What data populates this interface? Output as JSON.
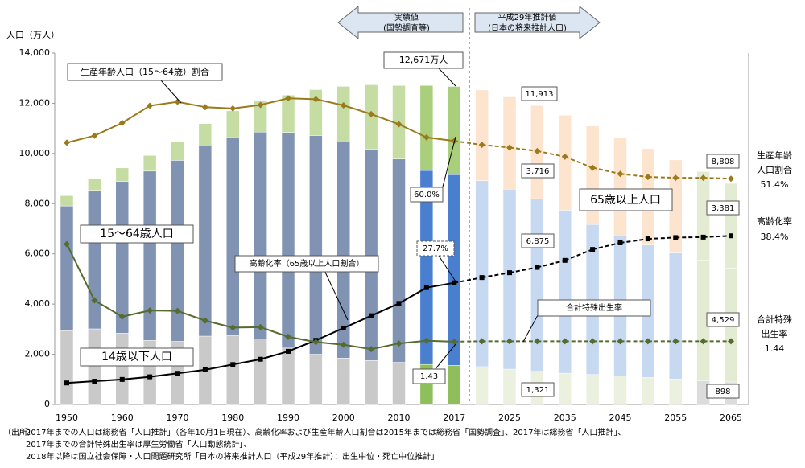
{
  "chart_data": {
    "type": "bar",
    "y_label": "人口（万人）",
    "categories": [
      "1950",
      null,
      "1960",
      null,
      "1970",
      null,
      "1980",
      null,
      "1990",
      null,
      "2000",
      null,
      "2010",
      null,
      "2017",
      null,
      "2025",
      null,
      "2035",
      null,
      "2045",
      null,
      "2055",
      null,
      "2065"
    ],
    "ylim": [
      0,
      14000
    ],
    "yticks": [
      0,
      {
        "value": 2000,
        "label": "2,000"
      },
      {
        "value": 4000,
        "label": "4,000"
      },
      {
        "value": 6000,
        "label": "6,000"
      },
      {
        "value": 8000,
        "label": "8,000"
      },
      {
        "value": 10000,
        "label": "10,000"
      },
      {
        "value": 12000,
        "label": "12,000"
      },
      {
        "value": 14000,
        "label": "14,000"
      }
    ],
    "y2lim": [
      0,
      80
    ],
    "y3lim": [
      0,
      8
    ],
    "series": [
      {
        "name": "14歳以下人口",
        "values": [
          2943,
          3012,
          2843,
          2553,
          2515,
          2722,
          2751,
          2603,
          2249,
          2001,
          1847,
          1752,
          1680,
          1595,
          1559,
          1507,
          1407,
          1321,
          1246,
          1194,
          1138,
          1077,
          1012,
          951,
          898
        ],
        "colors": [
          "#c9c9c9",
          "#c9c9c9",
          "#c9c9c9",
          "#c9c9c9",
          "#c9c9c9",
          "#c9c9c9",
          "#c9c9c9",
          "#c9c9c9",
          "#c9c9c9",
          "#c9c9c9",
          "#c9c9c9",
          "#c9c9c9",
          "#c9c9c9",
          "#8fbf5a",
          "#8fbf5a",
          "#ebf1de",
          "#ebf1de",
          "#ebf1de",
          "#ebf1de",
          "#ebf1de",
          "#ebf1de",
          "#ebf1de",
          "#ebf1de",
          "#dcdcdc",
          "#dcdcdc"
        ]
      },
      {
        "name": "15～64歳人口",
        "values": [
          4966,
          5517,
          6047,
          6744,
          7212,
          7581,
          7883,
          8251,
          8590,
          8716,
          8622,
          8409,
          8103,
          7728,
          7596,
          7406,
          7170,
          6875,
          6494,
          5978,
          5584,
          5275,
          5028,
          4793,
          4529
        ],
        "colors": [
          "#8093b3",
          "#8093b3",
          "#8093b3",
          "#8093b3",
          "#8093b3",
          "#8093b3",
          "#8093b3",
          "#8093b3",
          "#8093b3",
          "#8093b3",
          "#8093b3",
          "#8093b3",
          "#8093b3",
          "#4a7fd0",
          "#4a7fd0",
          "#c6d9f0",
          "#c6d9f0",
          "#c6d9f0",
          "#c6d9f0",
          "#c6d9f0",
          "#c6d9f0",
          "#c6d9f0",
          "#c6d9f0",
          "#e3ecd2",
          "#e3ecd2"
        ]
      },
      {
        "name": "65歳以上人口",
        "values": [
          411,
          479,
          535,
          624,
          739,
          887,
          1065,
          1247,
          1489,
          1826,
          2204,
          2576,
          2925,
          3387,
          3515,
          3619,
          3677,
          3716,
          3782,
          3921,
          3919,
          3841,
          3704,
          3540,
          3381
        ],
        "colors": [
          "#c5dda3",
          "#c5dda3",
          "#c5dda3",
          "#c5dda3",
          "#c5dda3",
          "#c5dda3",
          "#c5dda3",
          "#c5dda3",
          "#c5dda3",
          "#c5dda3",
          "#c5dda3",
          "#c5dda3",
          "#c5dda3",
          "#a9cf7c",
          "#a9cf7c",
          "#fde4cf",
          "#fde4cf",
          "#fde4cf",
          "#fde4cf",
          "#fde4cf",
          "#fde4cf",
          "#fde4cf",
          "#fde4cf",
          "#e3ecd2",
          "#e3ecd2"
        ]
      }
    ],
    "lines": [
      {
        "name": "生産年齢人口（15～64歳）割合",
        "axis": "y2",
        "color": "#9a7b1c",
        "marker": "diamond",
        "values": [
          59.6,
          61.2,
          64.1,
          68.0,
          68.9,
          67.7,
          67.4,
          68.2,
          69.7,
          69.5,
          68.1,
          66.1,
          63.8,
          60.8,
          60.0,
          59.1,
          58.5,
          57.7,
          56.4,
          53.9,
          52.5,
          51.8,
          51.6,
          51.6,
          51.4
        ]
      },
      {
        "name": "高齢化率（65歳以上人口割合）",
        "axis": "y2",
        "color": "#000000",
        "marker": "square",
        "values": [
          4.9,
          5.3,
          5.7,
          6.3,
          7.1,
          7.9,
          9.1,
          10.3,
          12.1,
          14.6,
          17.4,
          20.2,
          23.0,
          26.6,
          27.7,
          28.9,
          30.0,
          31.2,
          32.8,
          35.3,
          36.8,
          37.7,
          38.0,
          38.1,
          38.4
        ]
      },
      {
        "name": "合計特殊出生率",
        "axis": "y3",
        "color": "#556b2f",
        "marker": "diamond",
        "values": [
          3.65,
          2.37,
          2.0,
          2.14,
          2.13,
          1.91,
          1.75,
          1.76,
          1.54,
          1.42,
          1.36,
          1.26,
          1.39,
          1.45,
          1.43,
          1.44,
          1.44,
          1.44,
          1.44,
          1.44,
          1.44,
          1.44,
          1.44,
          1.44,
          1.44
        ]
      }
    ],
    "annotations": [
      "12,671万人",
      "11,913",
      "3,716",
      "6,875",
      "1,321",
      "8,808",
      "3,381",
      "4,529",
      "898",
      "60.0%",
      "27.7%",
      "1.43",
      [
        "生産年齢",
        "人口割合",
        "51.4%"
      ],
      [
        "高齢化率",
        "38.4%"
      ],
      [
        "合計特殊",
        "出生率",
        "1.44"
      ],
      [
        "実績値",
        "(国勢調査等)"
      ],
      [
        "平成29年推計値",
        "(日本の将来推計人口)"
      ]
    ],
    "source": [
      "（出所）",
      "2017年までの人口は総務省「人口推計」（各年10月1日現在）、高齢化率および生産年齢人口割合は2015年までは総務省「国勢調査」、2017年は総務省「人口推計」、",
      "2017年までの合計特殊出生率は厚生労働省「人口動態統計」、",
      "2018年以降は国立社会保障・人口問題研究所「日本の将来推計人口（平成29年推計）：出生中位・死亡中位推計」"
    ]
  }
}
